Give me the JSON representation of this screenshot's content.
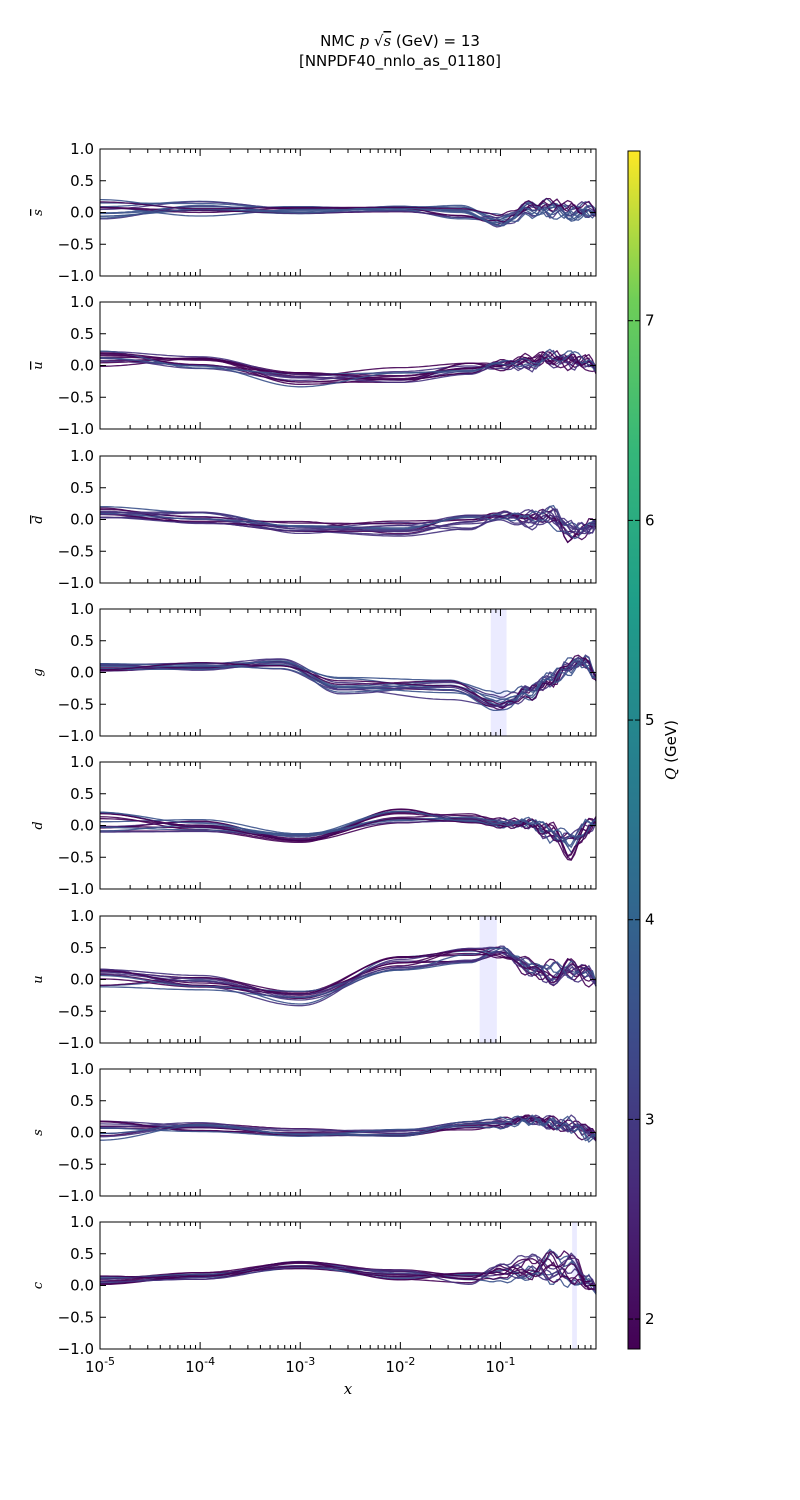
{
  "chart_data": {
    "type": "line",
    "title_line1": "NMC p √s (GeV) = 13",
    "title_line1_parts": {
      "pre": "NMC ",
      "p": "p",
      "sqrt": "√",
      "s": "s",
      "post": " (GeV) = 13"
    },
    "title_line2": "[NNPDF40_nnlo_as_01180]",
    "xlabel": "x",
    "xscale": "log",
    "xlim": [
      1e-05,
      0.9
    ],
    "x_tick_labels": [
      {
        "base": "10",
        "exp": "-5"
      },
      {
        "base": "10",
        "exp": "-4"
      },
      {
        "base": "10",
        "exp": "-3"
      },
      {
        "base": "10",
        "exp": "-2"
      },
      {
        "base": "10",
        "exp": "-1"
      }
    ],
    "ylim": [
      -1.0,
      1.0
    ],
    "y_tick_labels": [
      "1.0",
      "0.5",
      "0.0",
      "−0.5",
      "−1.0"
    ],
    "colorbar": {
      "label": "Q (GeV)",
      "label_q": "Q",
      "label_unit": " (GeV)",
      "range": [
        1.85,
        7.85
      ],
      "tick_labels": [
        "2",
        "3",
        "4",
        "5",
        "6",
        "7"
      ],
      "tick_values": [
        2,
        3,
        4,
        5,
        6,
        7
      ],
      "line_colors": [
        "#440154",
        "#46337e",
        "#3b528b"
      ]
    },
    "band_color": "#ebebff",
    "panels": [
      {
        "flavor": "s̄",
        "ylabel_base": "s",
        "ylabel_bar": true,
        "bands": [],
        "knots": [
          [
            -5,
            0.05
          ],
          [
            -4,
            0.06
          ],
          [
            -3,
            0.04
          ],
          [
            -2,
            0.07
          ],
          [
            -1.4,
            0.0
          ],
          [
            -1,
            -0.1
          ],
          [
            -0.7,
            0.05
          ],
          [
            -0.5,
            0.06
          ],
          [
            -0.3,
            0.02
          ],
          [
            -0.1,
            0.05
          ],
          [
            -0.046,
            0.0
          ]
        ],
        "amps": [
          0.17,
          0.12,
          0.06,
          0.06,
          0.12,
          0.12,
          0.12,
          0.12,
          0.12,
          0.08,
          0.06
        ]
      },
      {
        "flavor": "ū",
        "ylabel_base": "u",
        "ylabel_bar": true,
        "bands": [],
        "knots": [
          [
            -5,
            0.08
          ],
          [
            -4,
            0.04
          ],
          [
            -3,
            -0.22
          ],
          [
            -2,
            -0.15
          ],
          [
            -1.3,
            -0.05
          ],
          [
            -1,
            0.0
          ],
          [
            -0.7,
            0.05
          ],
          [
            -0.5,
            0.08
          ],
          [
            -0.3,
            0.07
          ],
          [
            -0.1,
            0.05
          ],
          [
            -0.046,
            -0.08
          ]
        ],
        "amps": [
          0.16,
          0.12,
          0.12,
          0.12,
          0.1,
          0.08,
          0.12,
          0.12,
          0.12,
          0.08,
          0.05
        ]
      },
      {
        "flavor": "d̄",
        "ylabel_base": "d",
        "ylabel_bar": true,
        "bands": [],
        "knots": [
          [
            -5,
            0.06
          ],
          [
            -4,
            0.03
          ],
          [
            -3,
            -0.12
          ],
          [
            -2,
            -0.15
          ],
          [
            -1.3,
            -0.05
          ],
          [
            -1,
            0.05
          ],
          [
            -0.7,
            0.0
          ],
          [
            -0.5,
            0.05
          ],
          [
            -0.3,
            -0.2
          ],
          [
            -0.1,
            -0.15
          ],
          [
            -0.046,
            -0.05
          ]
        ],
        "amps": [
          0.15,
          0.1,
          0.1,
          0.14,
          0.12,
          0.08,
          0.12,
          0.15,
          0.15,
          0.12,
          0.06
        ]
      },
      {
        "flavor": "g",
        "ylabel_base": "g",
        "ylabel_bar": false,
        "bands": [
          [
            0.08,
            0.115
          ]
        ],
        "knots": [
          [
            -5,
            0.08
          ],
          [
            -4,
            0.1
          ],
          [
            -3.2,
            0.12
          ],
          [
            -2.6,
            -0.2
          ],
          [
            -1.5,
            -0.25
          ],
          [
            -1,
            -0.45
          ],
          [
            -0.7,
            -0.3
          ],
          [
            -0.5,
            -0.1
          ],
          [
            -0.3,
            0.1
          ],
          [
            -0.15,
            0.2
          ],
          [
            -0.046,
            -0.1
          ]
        ],
        "amps": [
          0.06,
          0.07,
          0.1,
          0.14,
          0.18,
          0.16,
          0.12,
          0.1,
          0.1,
          0.08,
          0.08
        ]
      },
      {
        "flavor": "d",
        "ylabel_base": "d",
        "ylabel_bar": false,
        "bands": [],
        "knots": [
          [
            -5,
            0.05
          ],
          [
            -4,
            0.0
          ],
          [
            -3,
            -0.2
          ],
          [
            -2,
            0.15
          ],
          [
            -1.3,
            0.12
          ],
          [
            -1,
            0.05
          ],
          [
            -0.7,
            0.0
          ],
          [
            -0.5,
            -0.1
          ],
          [
            -0.3,
            -0.3
          ],
          [
            -0.1,
            0.0
          ],
          [
            -0.046,
            0.08
          ]
        ],
        "amps": [
          0.16,
          0.1,
          0.08,
          0.12,
          0.1,
          0.08,
          0.1,
          0.12,
          0.2,
          0.1,
          0.05
        ]
      },
      {
        "flavor": "u",
        "ylabel_base": "u",
        "ylabel_bar": false,
        "bands": [
          [
            0.062,
            0.092
          ]
        ],
        "knots": [
          [
            -5,
            0.05
          ],
          [
            -4,
            -0.05
          ],
          [
            -3,
            -0.3
          ],
          [
            -2,
            0.25
          ],
          [
            -1.3,
            0.38
          ],
          [
            -1,
            0.42
          ],
          [
            -0.7,
            0.2
          ],
          [
            -0.5,
            0.1
          ],
          [
            -0.3,
            0.1
          ],
          [
            -0.1,
            0.05
          ],
          [
            -0.046,
            -0.05
          ]
        ],
        "amps": [
          0.17,
          0.12,
          0.12,
          0.14,
          0.12,
          0.1,
          0.14,
          0.2,
          0.2,
          0.12,
          0.06
        ]
      },
      {
        "flavor": "s",
        "ylabel_base": "s",
        "ylabel_bar": false,
        "bands": [],
        "knots": [
          [
            -5,
            0.05
          ],
          [
            -4,
            0.06
          ],
          [
            -3,
            0.0
          ],
          [
            -2,
            0.0
          ],
          [
            -1.3,
            0.1
          ],
          [
            -1,
            0.15
          ],
          [
            -0.7,
            0.2
          ],
          [
            -0.5,
            0.15
          ],
          [
            -0.3,
            0.1
          ],
          [
            -0.1,
            0.0
          ],
          [
            -0.046,
            -0.08
          ]
        ],
        "amps": [
          0.18,
          0.1,
          0.06,
          0.06,
          0.08,
          0.08,
          0.06,
          0.06,
          0.12,
          0.1,
          0.06
        ]
      },
      {
        "flavor": "c",
        "ylabel_base": "c",
        "ylabel_bar": false,
        "bands": [
          [
            0.52,
            0.58
          ]
        ],
        "knots": [
          [
            -5,
            0.08
          ],
          [
            -4,
            0.15
          ],
          [
            -3,
            0.32
          ],
          [
            -2,
            0.15
          ],
          [
            -1.3,
            0.12
          ],
          [
            -1,
            0.2
          ],
          [
            -0.7,
            0.3
          ],
          [
            -0.5,
            0.3
          ],
          [
            -0.3,
            0.25
          ],
          [
            -0.1,
            0.05
          ],
          [
            -0.046,
            -0.08
          ]
        ],
        "amps": [
          0.07,
          0.06,
          0.06,
          0.1,
          0.12,
          0.15,
          0.2,
          0.25,
          0.25,
          0.1,
          0.07
        ]
      }
    ]
  }
}
